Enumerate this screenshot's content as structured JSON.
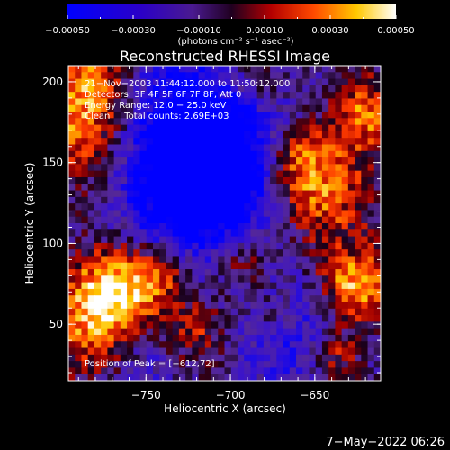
{
  "chart_data": {
    "type": "heatmap",
    "title": "Reconstructed RHESSI Image",
    "xlabel": "Heliocentric X (arcsec)",
    "ylabel": "Heliocentric Y (arcsec)",
    "xlim": [
      -796,
      -611
    ],
    "ylim": [
      15,
      210
    ],
    "x_ticks": [
      -750,
      -700,
      -650
    ],
    "x_tick_labels": [
      "−750",
      "−700",
      "−650"
    ],
    "y_ticks": [
      50,
      100,
      150,
      200
    ],
    "y_tick_labels": [
      "50",
      "100",
      "150",
      "200"
    ],
    "colorbar": {
      "range": [
        -0.0005,
        0.0005
      ],
      "ticks": [
        -0.0005,
        -0.0003,
        -0.0001,
        0.0001,
        0.0003,
        0.0005
      ],
      "tick_labels": [
        "−0.00050",
        "−0.00030",
        "−0.00010",
        "0.00010",
        "0.00030",
        "0.00050"
      ],
      "unit_label": "(photons cm⁻² s⁻¹ asec⁻²)"
    },
    "info_lines": [
      "21−Nov−2003 11:44:12.000 to 11:50:12.000",
      "Detectors: 3F 4F 5F 6F 7F 8F, Att 0",
      "Energy Range: 12.0 − 25.0 keV",
      "Clean     Total counts: 2.69E+03"
    ],
    "peak_label": "Position of Peak = [−612,72]",
    "peak": [
      -612,
      72
    ],
    "colors": {
      "background": "#000000",
      "text": "#ffffff"
    }
  },
  "footer": {
    "date": "7−May−2022 06:26"
  }
}
